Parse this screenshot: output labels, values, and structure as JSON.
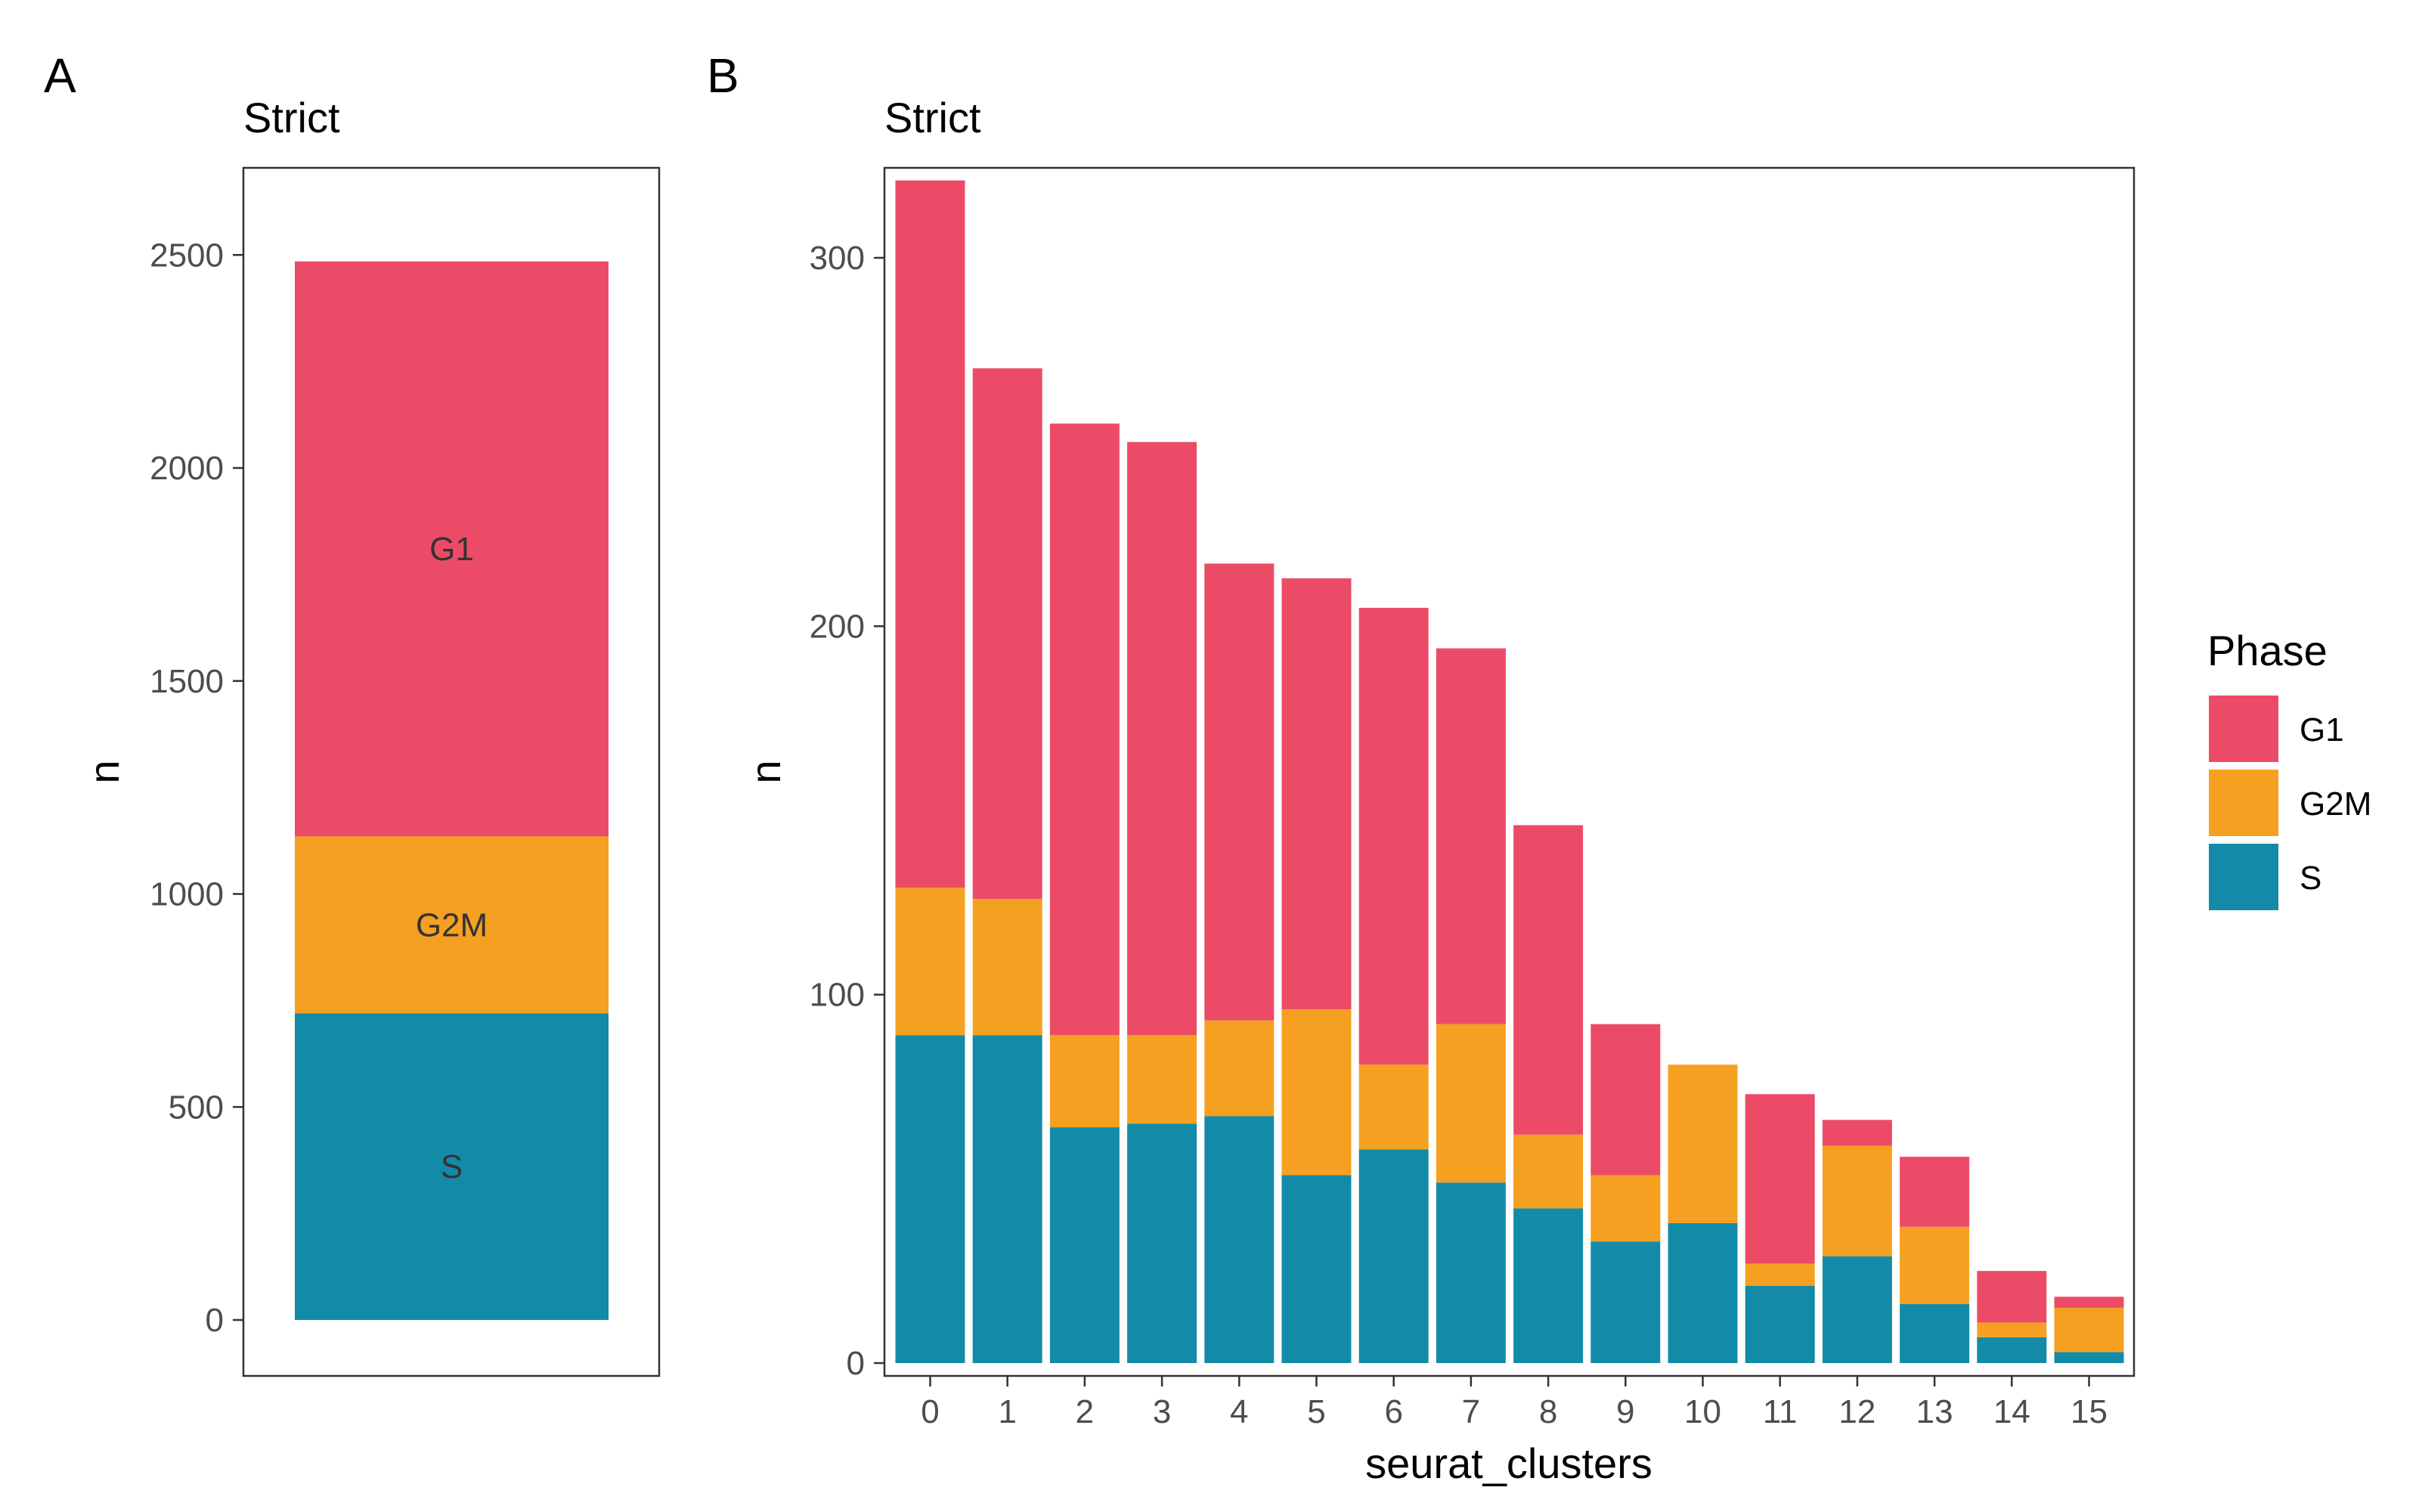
{
  "colors": {
    "G1": "#ec4b68",
    "G2M": "#f5a021",
    "S": "#138ba8"
  },
  "legend": {
    "title": "Phase",
    "items": [
      {
        "key": "G1",
        "label": "G1"
      },
      {
        "key": "G2M",
        "label": "G2M"
      },
      {
        "key": "S",
        "label": "S"
      }
    ]
  },
  "chart_data": [
    {
      "panel": "A",
      "type": "bar",
      "stacked": true,
      "title": "Strict",
      "xlabel": "",
      "ylabel": "n",
      "ylim": [
        0,
        2575
      ],
      "yticks": [
        0,
        500,
        1000,
        1500,
        2000,
        2500
      ],
      "categories": [
        ""
      ],
      "stack_order": [
        "S",
        "G2M",
        "G1"
      ],
      "series": [
        {
          "name": "G1",
          "values": [
            1350
          ]
        },
        {
          "name": "G2M",
          "values": [
            415
          ]
        },
        {
          "name": "S",
          "values": [
            720
          ]
        }
      ],
      "segment_labels": [
        "G1",
        "G2M",
        "S"
      ],
      "grid": false
    },
    {
      "panel": "B",
      "type": "bar",
      "stacked": true,
      "title": "Strict",
      "xlabel": "seurat_clusters",
      "ylabel": "n",
      "ylim": [
        0,
        324
      ],
      "yticks": [
        0,
        100,
        200,
        300
      ],
      "categories": [
        "0",
        "1",
        "2",
        "3",
        "4",
        "5",
        "6",
        "7",
        "8",
        "9",
        "10",
        "11",
        "12",
        "13",
        "14",
        "15"
      ],
      "stack_order": [
        "S",
        "G2M",
        "G1"
      ],
      "series": [
        {
          "name": "S",
          "values": [
            89,
            89,
            64,
            65,
            67,
            51,
            58,
            49,
            42,
            33,
            38,
            21,
            29,
            16,
            7,
            3
          ]
        },
        {
          "name": "G2M",
          "values": [
            40,
            37,
            25,
            24,
            26,
            45,
            23,
            43,
            20,
            18,
            43,
            6,
            30,
            21,
            4,
            12
          ]
        },
        {
          "name": "G1",
          "values": [
            192,
            144,
            166,
            161,
            124,
            117,
            124,
            102,
            84,
            41,
            0,
            46,
            7,
            19,
            14,
            3
          ]
        }
      ],
      "grid": false
    }
  ]
}
